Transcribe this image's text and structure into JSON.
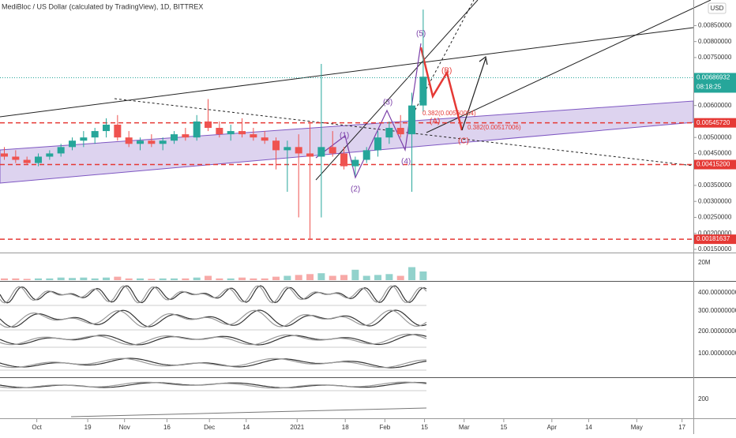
{
  "header": {
    "title": "MediBloc / US Dollar (calculated by TradingView), 1D, BITTREX",
    "currency": "USD"
  },
  "price_pane": {
    "ylim": [
      0.0014,
      0.0093
    ],
    "yticks": [
      {
        "value": 0.0015,
        "label": "0.00150000"
      },
      {
        "value": 0.002,
        "label": "0.00200000"
      },
      {
        "value": 0.0025,
        "label": "0.00250000"
      },
      {
        "value": 0.003,
        "label": "0.00300000"
      },
      {
        "value": 0.0035,
        "label": "0.00350000"
      },
      {
        "value": 0.0045,
        "label": "0.00450000"
      },
      {
        "value": 0.005,
        "label": "0.00500000"
      },
      {
        "value": 0.006,
        "label": "0.00600000"
      },
      {
        "value": 0.0075,
        "label": "0.00750000"
      },
      {
        "value": 0.008,
        "label": "0.00800000"
      },
      {
        "value": 0.0085,
        "label": "0.00850000"
      }
    ],
    "current": {
      "value": 0.00686932,
      "label": "0.00686932",
      "countdown": "08:18:25"
    },
    "levels": [
      {
        "value": 0.0054572,
        "label": "0.00545720"
      },
      {
        "value": 0.004152,
        "label": "0.00415200"
      },
      {
        "value": 0.00181637,
        "label": "0.00181637"
      }
    ],
    "candles": [
      [
        "2020-09-18",
        0.0045,
        0.0047,
        0.0043,
        0.0044
      ],
      [
        "2020-09-22",
        0.0044,
        0.0046,
        0.0042,
        0.0043
      ],
      [
        "2020-09-26",
        0.0043,
        0.0044,
        0.00415,
        0.0042
      ],
      [
        "2020-09-30",
        0.0042,
        0.0045,
        0.0041,
        0.0044
      ],
      [
        "2020-10-04",
        0.0044,
        0.0046,
        0.0043,
        0.0045
      ],
      [
        "2020-10-08",
        0.0045,
        0.0048,
        0.0044,
        0.0047
      ],
      [
        "2020-10-12",
        0.0047,
        0.005,
        0.0046,
        0.0049
      ],
      [
        "2020-10-16",
        0.0049,
        0.0052,
        0.0047,
        0.005
      ],
      [
        "2020-10-20",
        0.005,
        0.0053,
        0.0048,
        0.0052
      ],
      [
        "2020-10-24",
        0.0052,
        0.0056,
        0.005,
        0.0054
      ],
      [
        "2020-10-28",
        0.0054,
        0.0057,
        0.0049,
        0.005
      ],
      [
        "2020-11-01",
        0.005,
        0.0052,
        0.0047,
        0.0048
      ],
      [
        "2020-11-05",
        0.0048,
        0.005,
        0.0046,
        0.0049
      ],
      [
        "2020-11-09",
        0.0049,
        0.0051,
        0.0047,
        0.0048
      ],
      [
        "2020-11-13",
        0.0048,
        0.005,
        0.0046,
        0.0049
      ],
      [
        "2020-11-17",
        0.0049,
        0.0052,
        0.0048,
        0.0051
      ],
      [
        "2020-11-21",
        0.0051,
        0.0053,
        0.0049,
        0.005
      ],
      [
        "2020-11-25",
        0.005,
        0.0057,
        0.0049,
        0.0055
      ],
      [
        "2020-11-29",
        0.0055,
        0.0062,
        0.0052,
        0.0053
      ],
      [
        "2020-12-03",
        0.0053,
        0.0055,
        0.005,
        0.0051
      ],
      [
        "2020-12-07",
        0.0051,
        0.0054,
        0.0049,
        0.0052
      ],
      [
        "2020-12-11",
        0.0052,
        0.0056,
        0.005,
        0.0051
      ],
      [
        "2020-12-15",
        0.0051,
        0.0053,
        0.0049,
        0.005
      ],
      [
        "2020-12-19",
        0.005,
        0.0052,
        0.0048,
        0.0049
      ],
      [
        "2020-12-23",
        0.0049,
        0.005,
        0.004,
        0.0046
      ],
      [
        "2020-12-27",
        0.0046,
        0.0049,
        0.0033,
        0.0047
      ],
      [
        "2020-12-31",
        0.0047,
        0.0051,
        0.0025,
        0.0045
      ],
      [
        "2021-01-04",
        0.0045,
        0.0055,
        0.0018,
        0.0044
      ],
      [
        "2021-01-08",
        0.0044,
        0.0073,
        0.0025,
        0.0047
      ],
      [
        "2021-01-12",
        0.0047,
        0.0052,
        0.0044,
        0.0045
      ],
      [
        "2021-01-16",
        0.0045,
        0.0047,
        0.004,
        0.0041
      ],
      [
        "2021-01-20",
        0.0041,
        0.0044,
        0.0038,
        0.0043
      ],
      [
        "2021-01-24",
        0.0043,
        0.0047,
        0.0042,
        0.0046
      ],
      [
        "2021-01-28",
        0.0046,
        0.0052,
        0.0044,
        0.005
      ],
      [
        "2021-02-01",
        0.005,
        0.0055,
        0.0048,
        0.0053
      ],
      [
        "2021-02-05",
        0.0053,
        0.0057,
        0.005,
        0.0051
      ],
      [
        "2021-02-09",
        0.0051,
        0.0064,
        0.0033,
        0.006
      ],
      [
        "2021-02-13",
        0.006,
        0.009,
        0.0058,
        0.0069
      ]
    ],
    "annotations": [
      "(5)",
      "(B)",
      "(3)",
      "(1)",
      "(4)",
      "(2)",
      "(A)",
      "(C)",
      "0.382(0.00560054)",
      "0.382(0.00517006)"
    ]
  },
  "volume_pane": {
    "label": "20M",
    "scale": 20,
    "volumes": [
      2,
      2,
      1.5,
      2,
      2,
      3,
      2.5,
      3,
      2,
      3,
      4,
      2,
      2,
      1.5,
      2,
      2,
      2,
      3,
      5,
      2,
      2,
      3,
      2,
      2,
      4,
      5,
      6,
      7,
      8,
      5,
      6,
      12,
      5,
      6,
      7,
      5,
      15,
      10
    ]
  },
  "indicator_pane": {
    "labels": [
      "400.00000000",
      "300.00000000",
      "200.00000000",
      "100.00000000"
    ]
  },
  "lower_pane": {
    "label": "200"
  },
  "time_axis": {
    "xlim": [
      "2020-09-18",
      "2021-05-21"
    ],
    "xticks": [
      {
        "value": "2020-10-01",
        "label": "Oct"
      },
      {
        "value": "2020-10-19",
        "label": "19"
      },
      {
        "value": "2020-11-01",
        "label": "Nov"
      },
      {
        "value": "2020-11-16",
        "label": "16"
      },
      {
        "value": "2020-12-01",
        "label": "Dec"
      },
      {
        "value": "2020-12-14",
        "label": "14"
      },
      {
        "value": "2021-01-01",
        "label": "2021"
      },
      {
        "value": "2021-01-18",
        "label": "18"
      },
      {
        "value": "2021-02-01",
        "label": "Feb"
      },
      {
        "value": "2021-02-15",
        "label": "15"
      },
      {
        "value": "2021-03-01",
        "label": "Mar"
      },
      {
        "value": "2021-03-15",
        "label": "15"
      },
      {
        "value": "2021-04-01",
        "label": "Apr"
      },
      {
        "value": "2021-04-14",
        "label": "14"
      },
      {
        "value": "2021-05-01",
        "label": "May"
      },
      {
        "value": "2021-05-17",
        "label": "17"
      }
    ]
  }
}
